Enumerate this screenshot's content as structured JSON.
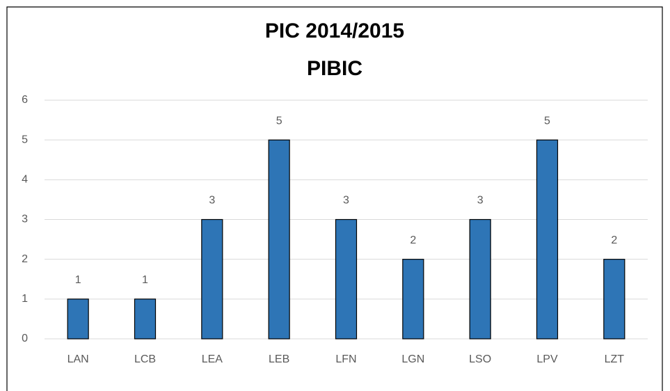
{
  "chart_data": {
    "type": "bar",
    "title": "PIC 2014/2015",
    "subtitle": "PIBIC",
    "categories": [
      "LAN",
      "LCB",
      "LEA",
      "LEB",
      "LFN",
      "LGN",
      "LSO",
      "LPV",
      "LZT"
    ],
    "values": [
      1,
      1,
      3,
      5,
      3,
      2,
      3,
      5,
      2
    ],
    "color": "#2e75b6",
    "ylim": [
      0,
      6
    ],
    "yticks": [
      0,
      1,
      2,
      3,
      4,
      5,
      6
    ],
    "grid": true
  }
}
